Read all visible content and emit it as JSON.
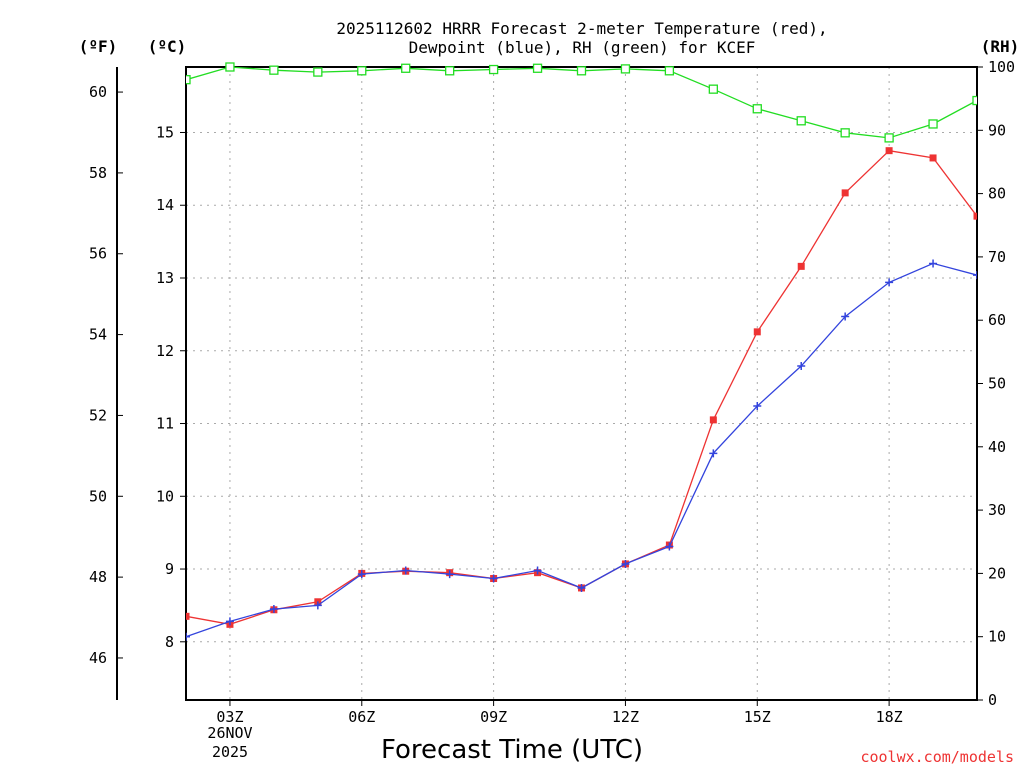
{
  "chart_data": {
    "type": "line",
    "title": [
      "2025112602 HRRR Forecast 2-meter Temperature (red),",
      "Dewpoint (blue), RH (green) for KCEF"
    ],
    "xlabel": "Forecast Time (UTC)",
    "units": {
      "fahrenheit": "(ºF)",
      "celsius": "(ºC)",
      "rh": "(RH)"
    },
    "credit": "coolwx.com/models",
    "date_label": [
      "26NOV",
      "2025"
    ],
    "x": [
      2,
      3,
      4,
      5,
      6,
      7,
      8,
      9,
      10,
      11,
      12,
      13,
      14,
      15,
      16,
      17,
      18,
      19,
      20
    ],
    "x_range": [
      2,
      20
    ],
    "x_ticks": [
      {
        "x": 3,
        "label": "03Z"
      },
      {
        "x": 6,
        "label": "06Z"
      },
      {
        "x": 9,
        "label": "09Z"
      },
      {
        "x": 12,
        "label": "12Z"
      },
      {
        "x": 15,
        "label": "15Z"
      },
      {
        "x": 18,
        "label": "18Z"
      }
    ],
    "celsius_axis": {
      "range": [
        7.2,
        15.9
      ],
      "ticks": [
        8,
        9,
        10,
        11,
        12,
        13,
        14,
        15
      ]
    },
    "fahrenheit_axis": {
      "range": [
        44.96,
        60.62
      ],
      "ticks": [
        46,
        48,
        50,
        52,
        54,
        56,
        58,
        60
      ]
    },
    "rh_axis": {
      "range": [
        0,
        100
      ],
      "ticks": [
        0,
        10,
        20,
        30,
        40,
        50,
        60,
        70,
        80,
        90,
        100
      ]
    },
    "series": [
      {
        "name": "Temperature",
        "color": "#ee3333",
        "axis": "celsius",
        "marker": "filled-square",
        "values": [
          8.35,
          8.24,
          8.44,
          8.55,
          8.94,
          8.97,
          8.95,
          8.87,
          8.95,
          8.74,
          9.07,
          9.33,
          11.05,
          12.26,
          13.16,
          14.17,
          14.75,
          14.65,
          13.85
        ]
      },
      {
        "name": "Dewpoint",
        "color": "#3344dd",
        "axis": "celsius",
        "marker": "plus",
        "values": [
          8.07,
          8.28,
          8.45,
          8.5,
          8.93,
          8.98,
          8.93,
          8.87,
          8.98,
          8.74,
          9.07,
          9.31,
          10.59,
          11.24,
          11.79,
          12.47,
          12.94,
          13.2,
          13.04
        ]
      },
      {
        "name": "RH",
        "color": "#22dd22",
        "axis": "rh",
        "marker": "open-square",
        "values": [
          98,
          100,
          99.5,
          99.2,
          99.4,
          99.8,
          99.4,
          99.6,
          99.8,
          99.4,
          99.7,
          99.4,
          96.5,
          93.4,
          91.5,
          89.6,
          88.8,
          91,
          94.7
        ]
      }
    ]
  }
}
